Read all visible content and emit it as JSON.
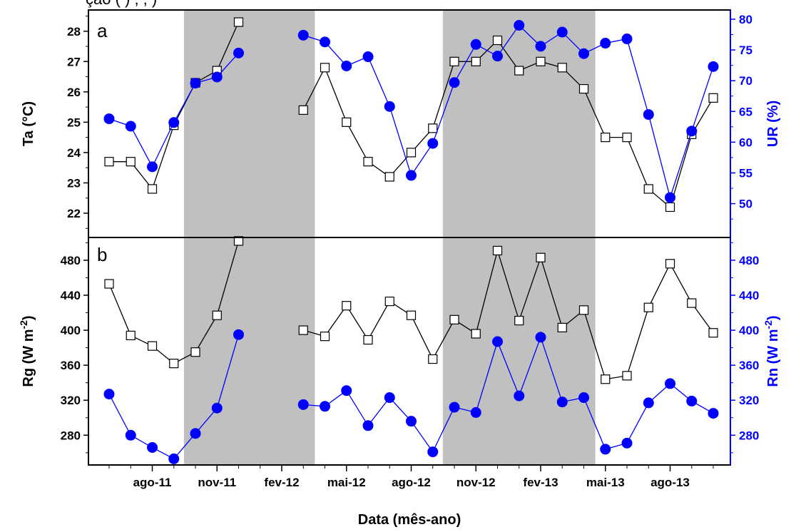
{
  "caption_fragment": "ção (                           ) ,           ,                                        )",
  "colors": {
    "left_series": "#000000",
    "right_series": "#0000ff",
    "marker_fill_left": "#ffffff",
    "shade": "#c0c0c0"
  },
  "x_axis": {
    "title": "Data (mês-ano)",
    "tick_labels": [
      "ago-11",
      "nov-11",
      "fev-12",
      "mai-12",
      "ago-12",
      "nov-12",
      "fev-13",
      "mai-13",
      "ago-13"
    ]
  },
  "chart_data": [
    {
      "type": "line",
      "panel_label": "a",
      "x": [
        "jun-11",
        "jul-11",
        "ago-11",
        "set-11",
        "out-11",
        "nov-11",
        "dez-11",
        "jan-12",
        "fev-12",
        "mar-12",
        "abr-12",
        "mai-12",
        "jun-12",
        "jul-12",
        "ago-12",
        "set-12",
        "out-12",
        "nov-12",
        "dez-12",
        "jan-13",
        "fev-13",
        "mar-13",
        "abr-13",
        "mai-13",
        "jun-13",
        "jul-13",
        "ago-13",
        "set-13",
        "out-13"
      ],
      "shaded_periods": [
        [
          "out-11",
          "mar-12"
        ],
        [
          "out-12",
          "abr-13"
        ]
      ],
      "left_axis": {
        "label": "Ta (°C)",
        "ylim": [
          21.2,
          28.7
        ],
        "ticks": [
          22,
          23,
          24,
          25,
          26,
          27,
          28
        ]
      },
      "right_axis": {
        "label": "UR (%)",
        "ylim": [
          44.5,
          81.5
        ],
        "ticks": [
          50,
          55,
          60,
          65,
          70,
          75,
          80
        ]
      },
      "series": [
        {
          "axis": "left",
          "marker": "open-square",
          "values": [
            23.7,
            23.7,
            22.8,
            24.9,
            26.3,
            26.7,
            28.3,
            null,
            null,
            25.4,
            26.8,
            25.0,
            23.7,
            23.2,
            24.0,
            24.8,
            27.0,
            27.0,
            27.7,
            26.7,
            27.0,
            26.8,
            26.1,
            24.5,
            24.5,
            22.8,
            22.2,
            24.6,
            25.8
          ]
        },
        {
          "axis": "right",
          "marker": "filled-circle",
          "values": [
            63.8,
            62.6,
            56.0,
            63.2,
            69.6,
            70.6,
            74.5,
            null,
            null,
            77.4,
            76.3,
            72.4,
            73.9,
            65.8,
            54.6,
            59.8,
            69.7,
            75.9,
            74.0,
            79.0,
            75.6,
            77.9,
            74.4,
            76.1,
            76.8,
            64.5,
            51.0,
            61.8,
            72.3
          ]
        }
      ]
    },
    {
      "type": "line",
      "panel_label": "b",
      "x": [
        "jun-11",
        "jul-11",
        "ago-11",
        "set-11",
        "out-11",
        "nov-11",
        "dez-11",
        "jan-12",
        "fev-12",
        "mar-12",
        "abr-12",
        "mai-12",
        "jun-12",
        "jul-12",
        "ago-12",
        "set-12",
        "out-12",
        "nov-12",
        "dez-12",
        "jan-13",
        "fev-13",
        "mar-13",
        "abr-13",
        "mai-13",
        "jun-13",
        "jul-13",
        "ago-13",
        "set-13",
        "out-13"
      ],
      "shaded_periods": [
        [
          "out-11",
          "mar-12"
        ],
        [
          "out-12",
          "abr-13"
        ]
      ],
      "left_axis": {
        "label": "Rg (W m-2)",
        "label_base": "Rg (W m",
        "label_sup": "-2",
        "label_close": ")",
        "ylim": [
          246,
          506
        ],
        "ticks": [
          280,
          320,
          360,
          400,
          440,
          480
        ]
      },
      "right_axis": {
        "label": "Rn (W m-2)",
        "label_base": "Rn (W m",
        "label_sup": "-2",
        "label_close": ")",
        "ylim": [
          246,
          506
        ],
        "ticks": [
          280,
          320,
          360,
          400,
          440,
          480
        ]
      },
      "series": [
        {
          "axis": "left",
          "marker": "open-square",
          "values": [
            453,
            394,
            382,
            362,
            375,
            417,
            502,
            null,
            null,
            400,
            393,
            428,
            389,
            433,
            417,
            367,
            412,
            396,
            491,
            411,
            483,
            403,
            423,
            344,
            348,
            426,
            476,
            431,
            397
          ]
        },
        {
          "axis": "right",
          "marker": "filled-circle",
          "values": [
            327,
            280,
            266,
            253,
            282,
            311,
            395,
            null,
            null,
            315,
            313,
            331,
            291,
            323,
            296,
            261,
            312,
            306,
            387,
            325,
            392,
            318,
            323,
            264,
            271,
            317,
            339,
            319,
            305
          ]
        }
      ]
    }
  ]
}
